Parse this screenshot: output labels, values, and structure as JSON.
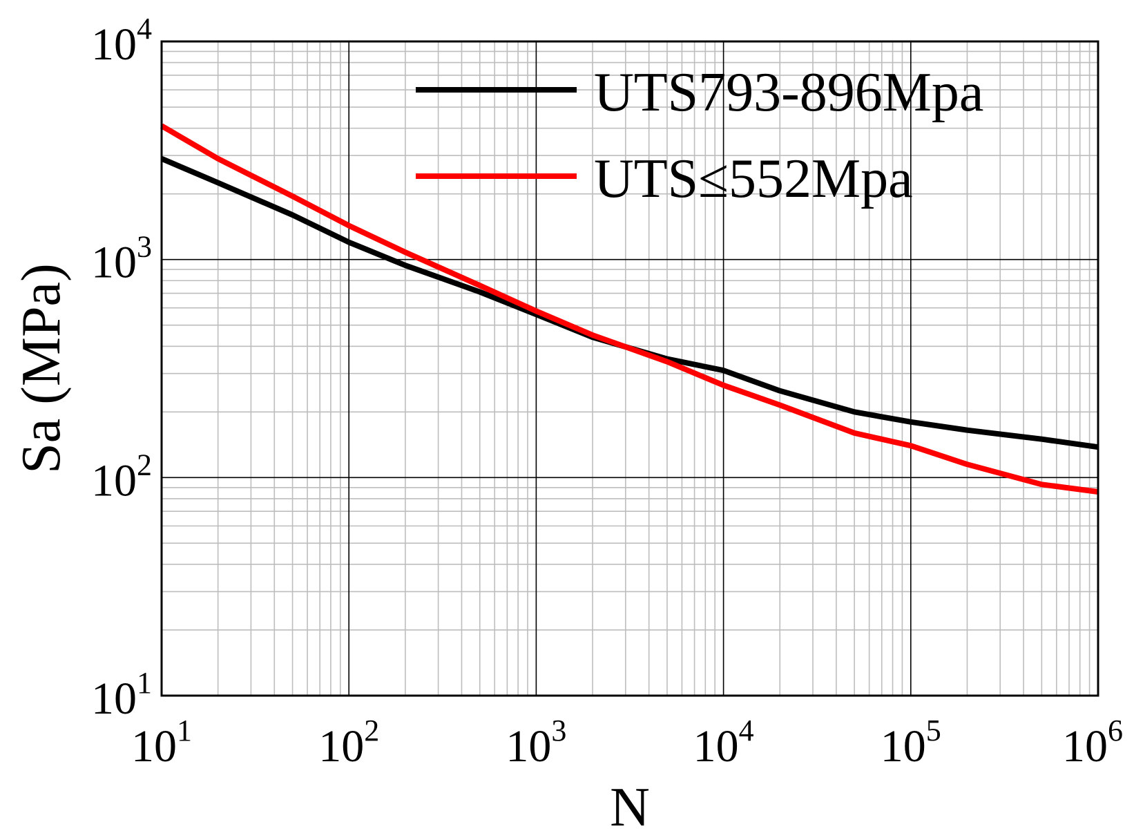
{
  "chart_data": {
    "type": "line",
    "title": "",
    "xlabel": "N",
    "ylabel": "Sa (MPa)",
    "xscale": "log",
    "yscale": "log",
    "xlim": [
      10,
      1000000
    ],
    "ylim": [
      10,
      10000
    ],
    "grid": "major and minor",
    "legend_position": "top-right",
    "x_ticks": [
      {
        "base": "10",
        "exp": "1",
        "value": 10
      },
      {
        "base": "10",
        "exp": "2",
        "value": 100
      },
      {
        "base": "10",
        "exp": "3",
        "value": 1000
      },
      {
        "base": "10",
        "exp": "4",
        "value": 10000
      },
      {
        "base": "10",
        "exp": "5",
        "value": 100000
      },
      {
        "base": "10",
        "exp": "6",
        "value": 1000000
      }
    ],
    "y_ticks": [
      {
        "base": "10",
        "exp": "1",
        "value": 10
      },
      {
        "base": "10",
        "exp": "2",
        "value": 100
      },
      {
        "base": "10",
        "exp": "3",
        "value": 1000
      },
      {
        "base": "10",
        "exp": "4",
        "value": 10000
      }
    ],
    "series": [
      {
        "name": "UTS793-896Mpa",
        "color": "#000000",
        "x": [
          10,
          20,
          50,
          100,
          200,
          500,
          1000,
          2000,
          5000,
          10000,
          20000,
          50000,
          100000,
          200000,
          500000,
          1000000
        ],
        "y": [
          2900,
          2250,
          1600,
          1200,
          940,
          710,
          560,
          440,
          350,
          310,
          250,
          200,
          180,
          165,
          150,
          138
        ]
      },
      {
        "name": "UTS≤552Mpa",
        "color": "#ff0000",
        "x": [
          10,
          20,
          50,
          100,
          200,
          500,
          1000,
          2000,
          5000,
          10000,
          20000,
          50000,
          100000,
          200000,
          500000,
          1000000
        ],
        "y": [
          4100,
          2900,
          1950,
          1430,
          1080,
          760,
          580,
          450,
          340,
          265,
          215,
          160,
          140,
          115,
          93,
          86
        ]
      }
    ]
  }
}
